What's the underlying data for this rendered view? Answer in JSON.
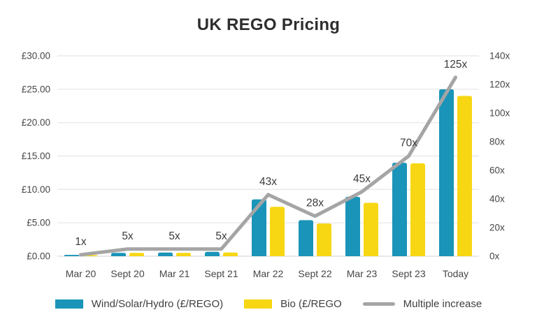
{
  "chart_data": {
    "type": "bar",
    "title": "UK REGO Pricing",
    "categories": [
      "Mar 20",
      "Sept 20",
      "Mar 21",
      "Sept 21",
      "Mar 22",
      "Sept 22",
      "Mar 23",
      "Sept 23",
      "Today"
    ],
    "series": [
      {
        "name": "Wind/Solar/Hydro (£/REGO)",
        "type": "bar",
        "axis": "left",
        "color": "#1a94b8",
        "values": [
          0.2,
          0.5,
          0.55,
          0.65,
          8.5,
          5.4,
          8.9,
          14.0,
          25.0
        ]
      },
      {
        "name": "Bio (£/REGO",
        "type": "bar",
        "axis": "left",
        "color": "#f7d713",
        "values": [
          0.1,
          0.5,
          0.5,
          0.55,
          7.4,
          4.9,
          8.0,
          13.9,
          24.0
        ]
      },
      {
        "name": "Multiple increase",
        "type": "line",
        "axis": "right",
        "color": "#a5a5a5",
        "values": [
          1,
          5,
          5,
          5,
          43,
          28,
          45,
          70,
          125
        ],
        "point_labels": [
          "1x",
          "5x",
          "5x",
          "5x",
          "43x",
          "28x",
          "45x",
          "70x",
          "125x"
        ]
      }
    ],
    "left_axis": {
      "ticks": [
        "£30.00",
        "£25.00",
        "£20.00",
        "£15.00",
        "£10.00",
        "£5.00",
        "£0.00"
      ],
      "min": 0,
      "max": 30
    },
    "right_axis": {
      "ticks": [
        "140x",
        "120x",
        "100x",
        "80x",
        "60x",
        "40x",
        "20x",
        "0x"
      ],
      "min": 0,
      "max": 140
    },
    "grid": true,
    "legend_position": "bottom"
  },
  "legend": [
    {
      "label": "Wind/Solar/Hydro (£/REGO)",
      "swatch": "bar",
      "color": "#1a94b8"
    },
    {
      "label": "Bio (£/REGO",
      "swatch": "bar",
      "color": "#f7d713"
    },
    {
      "label": "Multiple increase",
      "swatch": "line",
      "color": "#a5a5a5"
    }
  ],
  "colors": {
    "grid_line": "#e5e5e5",
    "baseline": "#dcdcdc",
    "axis_text": "#464646",
    "data_label_text": "#3a3a3a",
    "title_text": "#2e2e2e"
  }
}
